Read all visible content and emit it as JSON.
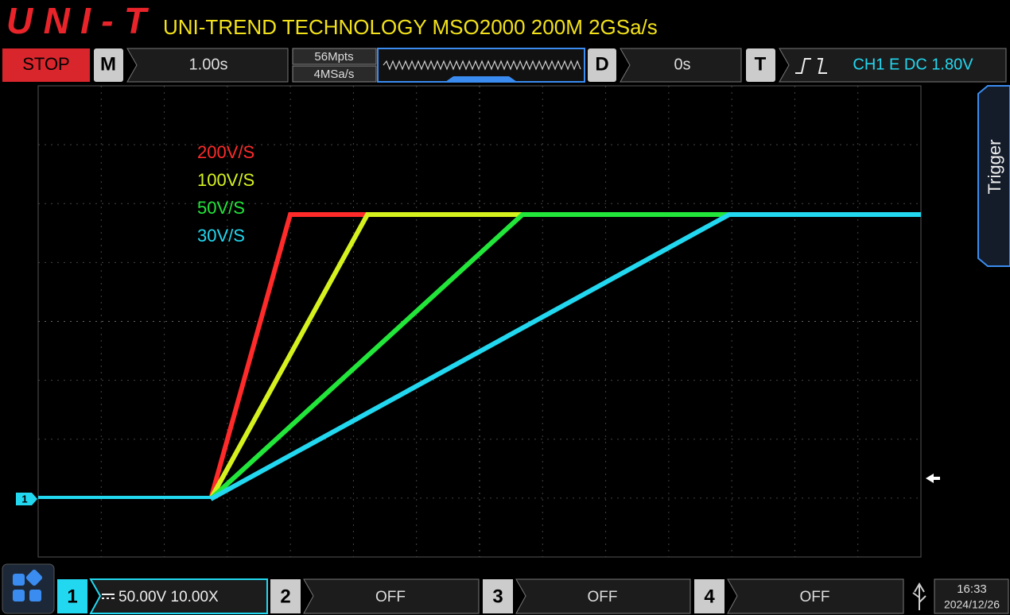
{
  "header": {
    "logo": "UNI-T",
    "title": "UNI-TREND TECHNOLOGY MSO2000 200M 2GSa/s"
  },
  "toolbar": {
    "run_state": "STOP",
    "timebase": {
      "label": "M",
      "value": "1.00s"
    },
    "memory_depth": "56Mpts",
    "sample_rate": "4MSa/s",
    "delay": {
      "label": "D",
      "value": "0s"
    },
    "trigger": {
      "label": "T",
      "value": "CH1 E DC 1.80V"
    }
  },
  "side_tab": "Trigger",
  "traces": [
    {
      "label": "200V/S",
      "color": "#ff2a2a"
    },
    {
      "label": "100V/S",
      "color": "#d6f21e"
    },
    {
      "label": "50V/S",
      "color": "#22e63a"
    },
    {
      "label": "30V/S",
      "color": "#22d8f0"
    }
  ],
  "channel_marker": "1",
  "channels": [
    {
      "label": "1",
      "value": "50.00V 10.00X"
    },
    {
      "label": "2",
      "value": "OFF"
    },
    {
      "label": "3",
      "value": "OFF"
    },
    {
      "label": "4",
      "value": "OFF"
    }
  ],
  "clock": {
    "time": "16:33",
    "date": "2024/12/26"
  }
}
